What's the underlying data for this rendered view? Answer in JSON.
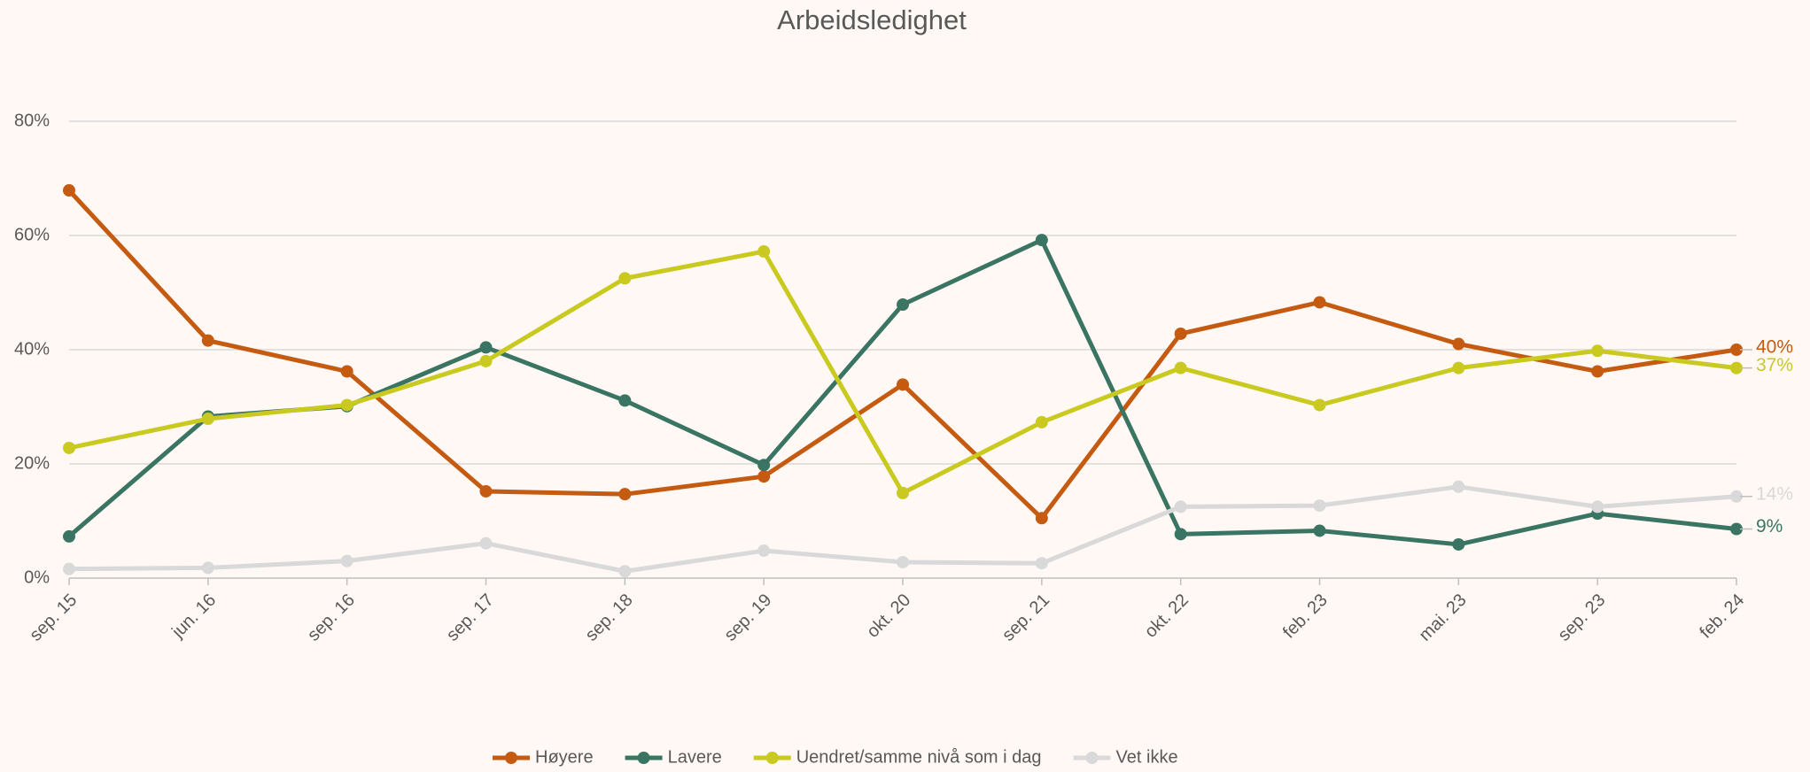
{
  "chart_data": {
    "type": "line",
    "title": "Arbeidsledighet",
    "categories": [
      "sep. 15",
      "jun. 16",
      "sep. 16",
      "sep. 17",
      "sep. 18",
      "sep. 19",
      "okt. 20",
      "sep. 21",
      "okt. 22",
      "feb. 23",
      "mai. 23",
      "sep. 23",
      "feb. 24"
    ],
    "series": [
      {
        "name": "Høyere",
        "color": "#c55a11",
        "values": [
          67.9,
          41.6,
          36.2,
          15.2,
          14.7,
          17.8,
          33.9,
          10.5,
          42.8,
          48.3,
          41.0,
          36.2,
          40
        ],
        "value_labels": [
          null,
          null,
          null,
          null,
          null,
          null,
          null,
          null,
          null,
          null,
          null,
          null,
          "40%"
        ]
      },
      {
        "name": "Lavere",
        "color": "#3a7563",
        "values": [
          7.3,
          28.3,
          30.1,
          40.4,
          31.1,
          19.8,
          47.9,
          59.2,
          7.7,
          8.3,
          5.9,
          11.3,
          8.6
        ],
        "value_labels": [
          null,
          null,
          null,
          null,
          null,
          null,
          null,
          null,
          null,
          null,
          null,
          null,
          "9%"
        ]
      },
      {
        "name": "Uendret/samme nivå som i dag",
        "color": "#c9c91f",
        "values": [
          22.8,
          27.9,
          30.3,
          38.0,
          52.5,
          57.2,
          14.9,
          27.3,
          36.8,
          30.3,
          36.8,
          39.8,
          36.8
        ],
        "value_labels": [
          null,
          null,
          null,
          null,
          null,
          null,
          null,
          null,
          null,
          null,
          null,
          null,
          "37%"
        ]
      },
      {
        "name": "Vet ikke",
        "color": "#d9d9d9",
        "values": [
          1.6,
          1.8,
          3.0,
          6.1,
          1.2,
          4.8,
          2.8,
          2.6,
          12.5,
          12.7,
          16.0,
          12.5,
          14.3
        ],
        "value_labels": [
          null,
          null,
          null,
          null,
          null,
          null,
          null,
          null,
          null,
          null,
          null,
          null,
          "14%"
        ]
      }
    ],
    "ylim": [
      0,
      80
    ],
    "yticks": [
      {
        "value": 0,
        "label": "0%"
      },
      {
        "value": 20,
        "label": "20%"
      },
      {
        "value": 40,
        "label": "40%"
      },
      {
        "value": 60,
        "label": "60%"
      },
      {
        "value": 80,
        "label": "80%"
      }
    ],
    "grid": true,
    "legend": "bottom"
  }
}
